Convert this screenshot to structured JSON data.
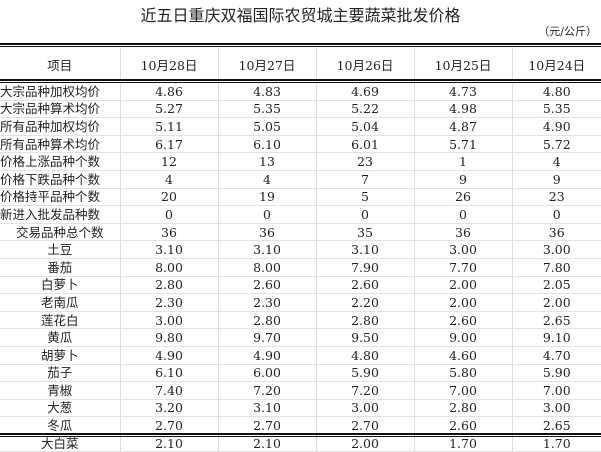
{
  "title": "近五日重庆双福国际农贸城主要蔬菜批发价格",
  "unit": "（元/公斤）",
  "headers": [
    "项目",
    "10月28日",
    "10月27日",
    "10月26日",
    "10月25日",
    "10月24日"
  ],
  "rows": [
    {
      "label": "大宗品种加权均价",
      "values": [
        "4.86",
        "4.83",
        "4.69",
        "4.73",
        "4.80"
      ]
    },
    {
      "label": "大宗品种算术均价",
      "values": [
        "5.27",
        "5.35",
        "5.22",
        "4.98",
        "5.35"
      ]
    },
    {
      "label": "所有品种加权均价",
      "values": [
        "5.11",
        "5.05",
        "5.04",
        "4.87",
        "4.90"
      ]
    },
    {
      "label": "所有品种算术均价",
      "values": [
        "6.17",
        "6.10",
        "6.01",
        "5.71",
        "5.72"
      ]
    },
    {
      "label": "价格上涨品种个数",
      "values": [
        "12",
        "13",
        "23",
        "1",
        "4"
      ]
    },
    {
      "label": "价格下跌品种个数",
      "values": [
        "4",
        "4",
        "7",
        "9",
        "9"
      ]
    },
    {
      "label": "价格持平品种个数",
      "values": [
        "20",
        "19",
        "5",
        "26",
        "23"
      ]
    },
    {
      "label": "新进入批发品种数",
      "values": [
        "0",
        "0",
        "0",
        "0",
        "0"
      ]
    },
    {
      "label": "交易品种总个数",
      "values": [
        "36",
        "36",
        "35",
        "36",
        "36"
      ]
    },
    {
      "label": "土豆",
      "values": [
        "3.10",
        "3.10",
        "3.10",
        "3.00",
        "3.00"
      ]
    },
    {
      "label": "番茄",
      "values": [
        "8.00",
        "8.00",
        "7.90",
        "7.70",
        "7.80"
      ]
    },
    {
      "label": "白萝卜",
      "values": [
        "2.80",
        "2.60",
        "2.60",
        "2.00",
        "2.05"
      ]
    },
    {
      "label": "老南瓜",
      "values": [
        "2.30",
        "2.30",
        "2.20",
        "2.00",
        "2.00"
      ]
    },
    {
      "label": "莲花白",
      "values": [
        "3.00",
        "2.80",
        "2.80",
        "2.60",
        "2.65"
      ]
    },
    {
      "label": "黄瓜",
      "values": [
        "9.80",
        "9.70",
        "9.50",
        "9.00",
        "9.10"
      ]
    },
    {
      "label": "胡萝卜",
      "values": [
        "4.90",
        "4.90",
        "4.80",
        "4.60",
        "4.70"
      ]
    },
    {
      "label": "茄子",
      "values": [
        "6.10",
        "6.00",
        "5.90",
        "5.80",
        "5.90"
      ]
    },
    {
      "label": "青椒",
      "values": [
        "7.40",
        "7.20",
        "7.20",
        "7.00",
        "7.00"
      ]
    },
    {
      "label": "大葱",
      "values": [
        "3.20",
        "3.10",
        "3.00",
        "2.80",
        "3.00"
      ]
    },
    {
      "label": "冬瓜",
      "values": [
        "2.70",
        "2.70",
        "2.70",
        "2.60",
        "2.65"
      ]
    },
    {
      "label": "大白菜",
      "values": [
        "2.10",
        "2.10",
        "2.00",
        "1.70",
        "1.70"
      ]
    }
  ]
}
